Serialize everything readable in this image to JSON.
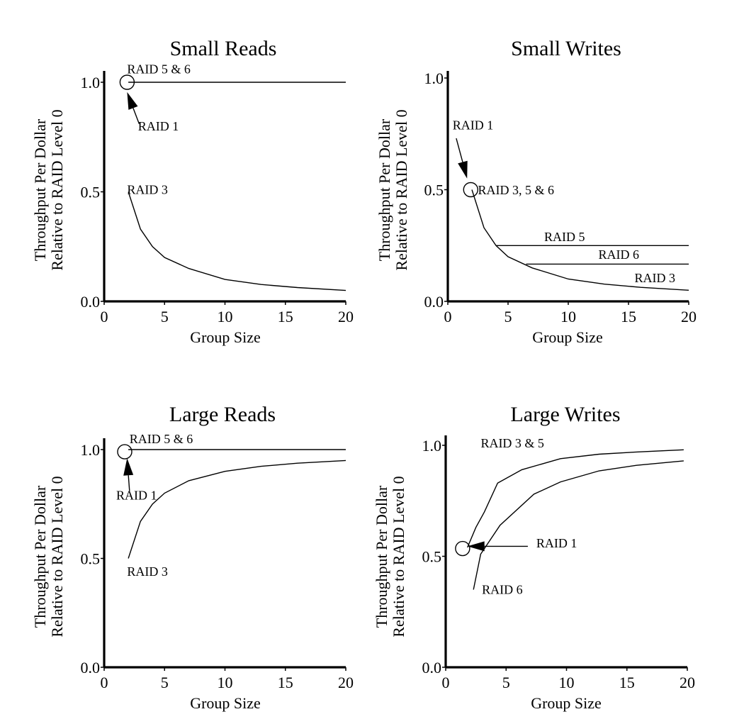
{
  "chart_data": [
    {
      "id": "small_reads",
      "type": "line",
      "title": "Small Reads",
      "xlabel": "Group Size",
      "ylabel": [
        "Throughput Per Dollar",
        "Relative to RAID Level 0"
      ],
      "xlim": [
        0,
        20
      ],
      "ylim": [
        0,
        1
      ],
      "xticks": [
        "0",
        "5",
        "10",
        "15",
        "20"
      ],
      "yticks": [
        [
          "0.0",
          0
        ],
        [
          "0.5",
          0.5
        ],
        [
          "1.0",
          1.0
        ]
      ],
      "grid": false,
      "series": [
        {
          "name": "RAID 5 & 6",
          "x": [
            2,
            20
          ],
          "y": [
            1.0,
            1.0
          ]
        },
        {
          "name": "RAID 3",
          "x": [
            2,
            3,
            4,
            5,
            7,
            10,
            13,
            16,
            20
          ],
          "y": [
            0.5,
            0.33,
            0.25,
            0.2,
            0.15,
            0.1,
            0.077,
            0.063,
            0.05
          ]
        }
      ],
      "markers": [
        {
          "x": 1.9,
          "y": 1.0
        }
      ],
      "labels": [
        {
          "text": "RAID 5 & 6",
          "x": 1.9,
          "y": 1.04
        },
        {
          "text": "RAID 1",
          "x": 2.8,
          "y": 0.78
        },
        {
          "text": "RAID 3",
          "x": 1.9,
          "y": 0.49
        }
      ],
      "arrows": [
        {
          "from": [
            2.9,
            0.81
          ],
          "to": [
            1.9,
            0.955
          ]
        }
      ]
    },
    {
      "id": "small_writes",
      "type": "line",
      "title": "Small Writes",
      "xlabel": "Group Size",
      "ylabel": [
        "Throughput Per Dollar",
        "Relative to RAID Level 0"
      ],
      "xlim": [
        0,
        20
      ],
      "ylim": [
        0,
        1
      ],
      "xticks": [
        "0",
        "5",
        "10",
        "15",
        "20"
      ],
      "yticks": [
        [
          "0.0",
          0
        ],
        [
          "0.5",
          0.5
        ],
        [
          "1.0",
          1.0
        ]
      ],
      "grid": false,
      "series": [
        {
          "name": "RAID 3",
          "x": [
            2,
            3,
            4,
            5,
            7,
            10,
            13,
            16,
            20
          ],
          "y": [
            0.5,
            0.33,
            0.25,
            0.2,
            0.15,
            0.1,
            0.077,
            0.063,
            0.05
          ]
        },
        {
          "name": "RAID 5",
          "x": [
            4,
            20
          ],
          "y": [
            0.25,
            0.25
          ]
        },
        {
          "name": "RAID 6",
          "x": [
            6.5,
            20
          ],
          "y": [
            0.167,
            0.167
          ]
        }
      ],
      "markers": [
        {
          "x": 1.9,
          "y": 0.5
        }
      ],
      "labels": [
        {
          "text": "RAID 1",
          "x": 0.4,
          "y": 0.77
        },
        {
          "text": "RAID 3, 5 & 6",
          "x": 2.5,
          "y": 0.48
        },
        {
          "text": "RAID 5",
          "x": 8.0,
          "y": 0.27
        },
        {
          "text": "RAID 6",
          "x": 12.5,
          "y": 0.19
        },
        {
          "text": "RAID 3",
          "x": 15.5,
          "y": 0.085
        }
      ],
      "arrows": [
        {
          "from": [
            0.7,
            0.73
          ],
          "to": [
            1.6,
            0.55
          ]
        }
      ]
    },
    {
      "id": "large_reads",
      "type": "line",
      "title": "Large Reads",
      "xlabel": "Group Size",
      "ylabel": [
        "Throughput Per Dollar",
        "Relative to RAID Level 0"
      ],
      "xlim": [
        0,
        20
      ],
      "ylim": [
        0,
        1
      ],
      "xticks": [
        "0",
        "5",
        "10",
        "15",
        "20"
      ],
      "yticks": [
        [
          "0.0",
          0
        ],
        [
          "0.5",
          0.5
        ],
        [
          "1.0",
          1.0
        ]
      ],
      "grid": false,
      "series": [
        {
          "name": "RAID 5 & 6",
          "x": [
            2,
            20
          ],
          "y": [
            1.0,
            1.0
          ]
        },
        {
          "name": "RAID 3",
          "x": [
            2,
            3,
            4,
            5,
            7,
            10,
            13,
            16,
            20
          ],
          "y": [
            0.5,
            0.67,
            0.75,
            0.8,
            0.857,
            0.9,
            0.923,
            0.9375,
            0.95
          ]
        }
      ],
      "markers": [
        {
          "x": 1.7,
          "y": 0.99
        }
      ],
      "labels": [
        {
          "text": "RAID 5 & 6",
          "x": 2.1,
          "y": 1.03
        },
        {
          "text": "RAID 1",
          "x": 1.0,
          "y": 0.77
        },
        {
          "text": "RAID 3",
          "x": 1.9,
          "y": 0.42
        }
      ],
      "arrows": [
        {
          "from": [
            2.1,
            0.81
          ],
          "to": [
            1.9,
            0.96
          ]
        }
      ]
    },
    {
      "id": "large_writes",
      "type": "line",
      "title": "Large Writes",
      "xlabel": "Group Size",
      "ylabel": [
        "Throughput Per Dollar",
        "Relative to RAID Level 0"
      ],
      "xlim": [
        0,
        20
      ],
      "ylim": [
        0,
        1
      ],
      "xticks": [
        "0",
        "5",
        "10",
        "15",
        "20"
      ],
      "yticks": [
        [
          "0.0",
          0
        ],
        [
          "0.5",
          0.5
        ],
        [
          "1.0",
          1.0
        ]
      ],
      "grid": false,
      "series": [
        {
          "name": "RAID 3 & 5",
          "x": [
            1.8,
            2.5,
            3.2,
            4.3,
            6.3,
            9.5,
            12.7,
            15.8,
            19.7
          ],
          "y": [
            0.54,
            0.63,
            0.7,
            0.83,
            0.89,
            0.94,
            0.96,
            0.97,
            0.98
          ]
        },
        {
          "name": "RAID 6",
          "x": [
            2.3,
            2.9,
            4.5,
            7.3,
            9.5,
            12.7,
            15.8,
            19.7
          ],
          "y": [
            0.35,
            0.51,
            0.64,
            0.78,
            0.835,
            0.885,
            0.91,
            0.93
          ]
        }
      ],
      "markers": [
        {
          "x": 1.4,
          "y": 0.535
        }
      ],
      "labels": [
        {
          "text": "RAID 3 & 5",
          "x": 2.9,
          "y": 0.99
        },
        {
          "text": "RAID 1",
          "x": 7.5,
          "y": 0.54
        },
        {
          "text": "RAID 6",
          "x": 3.0,
          "y": 0.33
        }
      ],
      "arrows": [
        {
          "from": [
            6.8,
            0.545
          ],
          "to": [
            1.8,
            0.545
          ]
        }
      ]
    }
  ]
}
